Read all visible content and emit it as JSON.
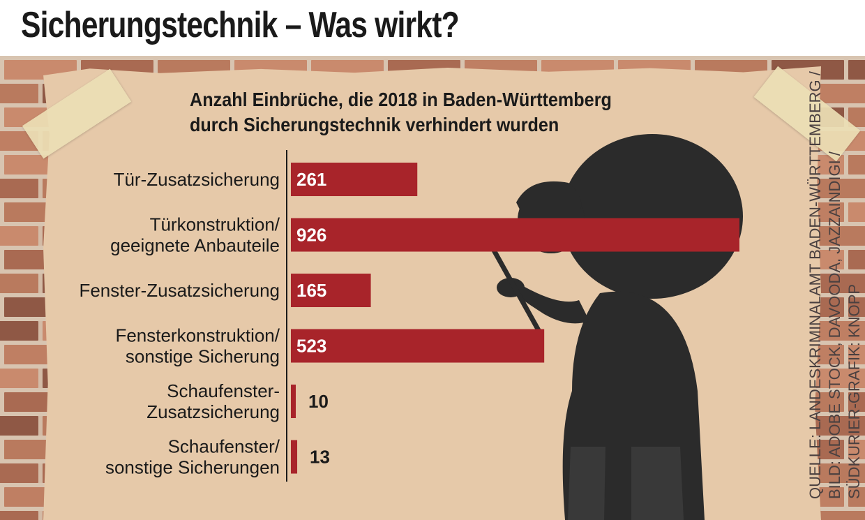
{
  "headline": "Sicherungstechnik – Was wirkt?",
  "chart_data": {
    "type": "bar",
    "orientation": "horizontal",
    "title": "Anzahl Einbrüche, die 2018 in Baden-Württemberg durch Sicherungstechnik verhindert wurden",
    "title_lines": [
      "Anzahl Einbrüche, die 2018 in Baden-Württemberg",
      "durch Sicherungstechnik verhindert wurden"
    ],
    "categories": [
      [
        "Tür-Zusatzsicherung"
      ],
      [
        "Türkonstruktion/",
        "geeignete Anbauteile"
      ],
      [
        "Fenster-Zusatzsicherung"
      ],
      [
        "Fensterkonstruktion/",
        "sonstige Sicherung"
      ],
      [
        "Schaufenster-",
        "Zusatzsicherung"
      ],
      [
        "Schaufenster/",
        "sonstige Sicherungen"
      ]
    ],
    "values": [
      261,
      926,
      165,
      523,
      10,
      13
    ],
    "value_labels": [
      "261",
      "926",
      "165",
      "523",
      "10",
      "13"
    ],
    "xlim": [
      0,
      926
    ],
    "bar_color": "#a8242a",
    "grid": false
  },
  "source": {
    "lines": [
      "QUELLE: LANDESKRIMINALAMT BADEN-WÜRTTEMBERG /",
      "BILD: ADOBE STOCK, DAVOODA, JAZZAINDIGI /",
      "SÜDKURIER-GRAFIK: KNOPP"
    ]
  },
  "colors": {
    "paper": "#e6c9a9",
    "tape": "#ecdeb5",
    "silhouette": "#2b2b2b",
    "bricks": [
      "#a96a52",
      "#b97a5e",
      "#c98a6d",
      "#8f5845",
      "#bf7f63"
    ]
  }
}
